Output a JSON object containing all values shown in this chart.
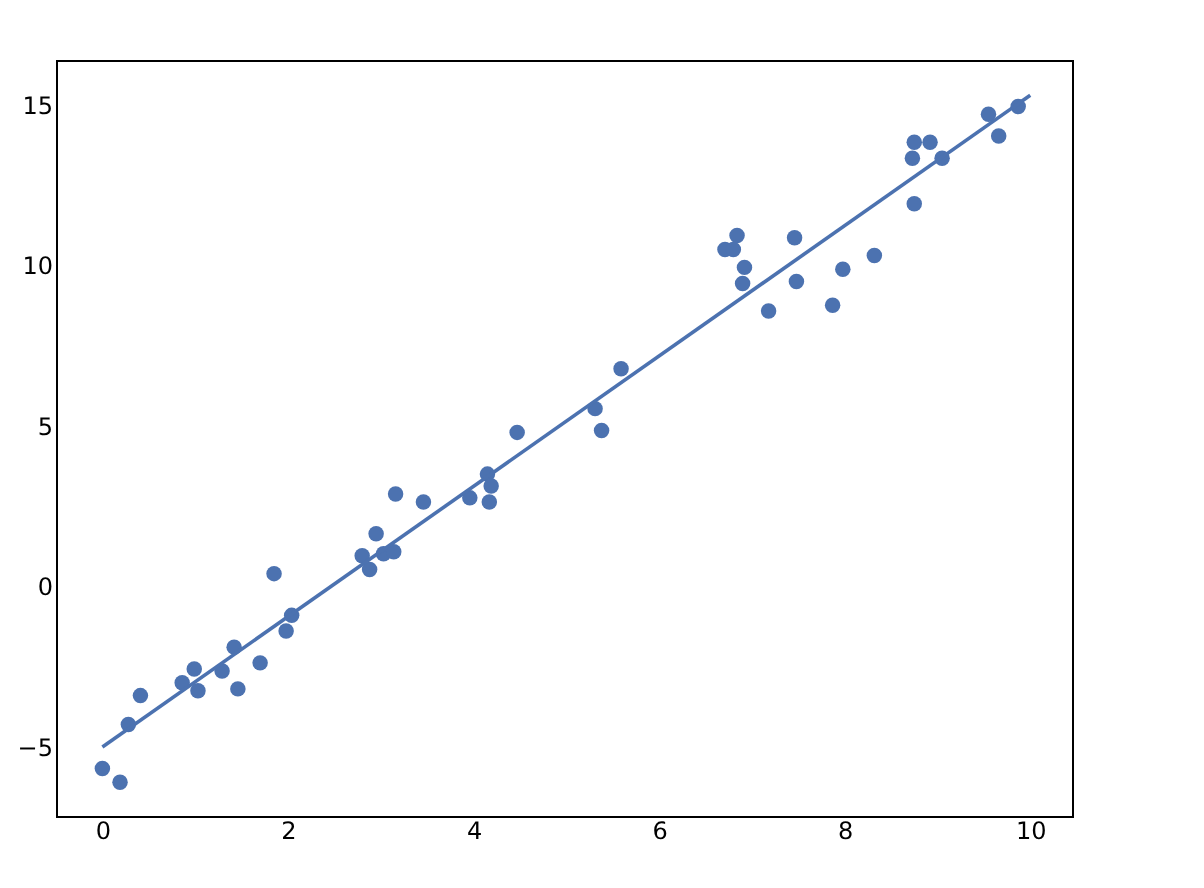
{
  "chart_data": {
    "type": "scatter",
    "xlim": [
      -0.5,
      10.45
    ],
    "ylim": [
      -7.15,
      16.4
    ],
    "xticks": [
      0,
      2,
      4,
      6,
      8,
      10
    ],
    "yticks": [
      -5,
      0,
      5,
      10,
      15
    ],
    "grid": false,
    "series": [
      {
        "marker": "circle",
        "color": "#4c72b0",
        "x": [
          0,
          0.19,
          0.28,
          0.41,
          0.86,
          0.99,
          1.03,
          1.29,
          1.42,
          1.46,
          1.7,
          1.85,
          1.98,
          2.04,
          2.8,
          2.95,
          2.88,
          3.03,
          3.14,
          3.16,
          3.46,
          3.96,
          4.15,
          4.19,
          4.17,
          4.47,
          5.31,
          5.38,
          5.59,
          6.71,
          6.84,
          6.8,
          6.92,
          6.9,
          7.18,
          7.46,
          7.48,
          7.87,
          7.98,
          8.32,
          8.75,
          8.75,
          8.73,
          8.92,
          9.05,
          9.55,
          9.66,
          9.87
        ],
        "values": [
          -5.67,
          -6.1,
          -4.3,
          -3.4,
          -3.0,
          -2.57,
          -3.25,
          -2.63,
          -1.89,
          -3.19,
          -2.38,
          0.4,
          -1.39,
          -0.9,
          0.96,
          1.64,
          0.53,
          1.02,
          1.08,
          2.88,
          2.63,
          2.76,
          3.5,
          3.13,
          2.63,
          4.8,
          5.54,
          4.86,
          6.78,
          10.5,
          10.93,
          10.5,
          9.94,
          9.44,
          8.58,
          10.86,
          9.5,
          8.76,
          9.88,
          10.31,
          11.92,
          13.84,
          13.34,
          13.84,
          13.34,
          14.71,
          14.03,
          14.95
        ]
      },
      {
        "type": "line",
        "line_style": "solid",
        "color": "#4c72b0",
        "x": [
          0,
          10
        ],
        "values": [
          -5.0,
          15.3
        ]
      }
    ]
  }
}
